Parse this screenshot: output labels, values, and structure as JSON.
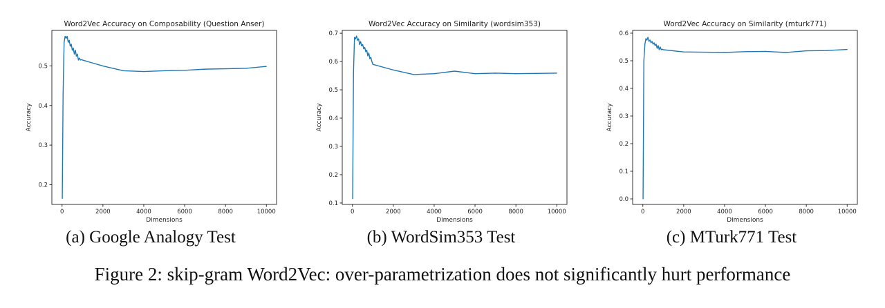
{
  "chart_data": [
    {
      "type": "line",
      "title": "Word2Vec Accuracy on Composability (Question Anser)",
      "xlabel": "Dimensions",
      "ylabel": "Accuracy",
      "xlim": [
        -500,
        10500
      ],
      "ylim": [
        0.15,
        0.59
      ],
      "xticks": [
        0,
        2000,
        4000,
        6000,
        8000,
        10000
      ],
      "yticks": [
        0.2,
        0.3,
        0.4,
        0.5
      ],
      "ytick_labels": [
        "0.2",
        "0.3",
        "0.4",
        "0.5"
      ],
      "line_color": "#1f77b4",
      "grid": false,
      "x": [
        10,
        50,
        100,
        150,
        200,
        250,
        300,
        350,
        400,
        450,
        500,
        550,
        600,
        650,
        700,
        750,
        800,
        850,
        900,
        950,
        1000,
        2000,
        3000,
        4000,
        5000,
        6000,
        7000,
        8000,
        9000,
        10000
      ],
      "y": [
        0.165,
        0.43,
        0.56,
        0.575,
        0.57,
        0.575,
        0.56,
        0.565,
        0.55,
        0.555,
        0.54,
        0.545,
        0.53,
        0.54,
        0.525,
        0.53,
        0.515,
        0.52,
        0.515,
        0.516,
        0.515,
        0.5,
        0.488,
        0.486,
        0.488,
        0.489,
        0.492,
        0.493,
        0.494,
        0.499
      ]
    },
    {
      "type": "line",
      "title": "Word2Vec Accuracy on Similarity (wordsim353)",
      "xlabel": "Dimensions",
      "ylabel": "Accuracy",
      "xlim": [
        -500,
        10500
      ],
      "ylim": [
        0.095,
        0.71
      ],
      "xticks": [
        0,
        2000,
        4000,
        6000,
        8000,
        10000
      ],
      "yticks": [
        0.1,
        0.2,
        0.3,
        0.4,
        0.5,
        0.6,
        0.7
      ],
      "ytick_labels": [
        "0.1",
        "0.2",
        "0.3",
        "0.4",
        "0.5",
        "0.6",
        "0.7"
      ],
      "line_color": "#1f77b4",
      "grid": false,
      "x": [
        10,
        50,
        100,
        150,
        200,
        250,
        300,
        350,
        400,
        450,
        500,
        550,
        600,
        650,
        700,
        750,
        800,
        850,
        900,
        950,
        1000,
        2000,
        3000,
        4000,
        5000,
        6000,
        7000,
        8000,
        9000,
        10000
      ],
      "y": [
        0.115,
        0.56,
        0.685,
        0.68,
        0.69,
        0.675,
        0.68,
        0.66,
        0.67,
        0.655,
        0.66,
        0.645,
        0.65,
        0.635,
        0.64,
        0.62,
        0.63,
        0.61,
        0.615,
        0.6,
        0.59,
        0.57,
        0.554,
        0.557,
        0.566,
        0.557,
        0.559,
        0.557,
        0.558,
        0.559
      ]
    },
    {
      "type": "line",
      "title": "Word2Vec Accuracy on Similarity (mturk771)",
      "xlabel": "Dimensions",
      "ylabel": "Accuracy",
      "xlim": [
        -500,
        10500
      ],
      "ylim": [
        -0.02,
        0.61
      ],
      "xticks": [
        0,
        2000,
        4000,
        6000,
        8000,
        10000
      ],
      "yticks": [
        0.0,
        0.1,
        0.2,
        0.3,
        0.4,
        0.5,
        0.6
      ],
      "ytick_labels": [
        "0.0",
        "0.1",
        "0.2",
        "0.3",
        "0.4",
        "0.5",
        "0.6"
      ],
      "line_color": "#1f77b4",
      "grid": false,
      "x": [
        10,
        50,
        100,
        150,
        200,
        250,
        300,
        350,
        400,
        450,
        500,
        550,
        600,
        650,
        700,
        750,
        800,
        850,
        900,
        950,
        1000,
        2000,
        3000,
        4000,
        5000,
        6000,
        7000,
        8000,
        9000,
        10000
      ],
      "y": [
        0.0,
        0.5,
        0.56,
        0.58,
        0.575,
        0.585,
        0.57,
        0.575,
        0.565,
        0.57,
        0.56,
        0.565,
        0.555,
        0.56,
        0.545,
        0.555,
        0.54,
        0.55,
        0.54,
        0.542,
        0.54,
        0.532,
        0.531,
        0.53,
        0.533,
        0.534,
        0.53,
        0.536,
        0.537,
        0.541
      ]
    }
  ],
  "subcaptions": [
    "(a) Google Analogy Test",
    "(b) WordSim353 Test",
    "(c) MTurk771 Test"
  ],
  "figure_caption": "Figure 2: skip-gram Word2Vec: over-parametrization does not significantly hurt performance"
}
